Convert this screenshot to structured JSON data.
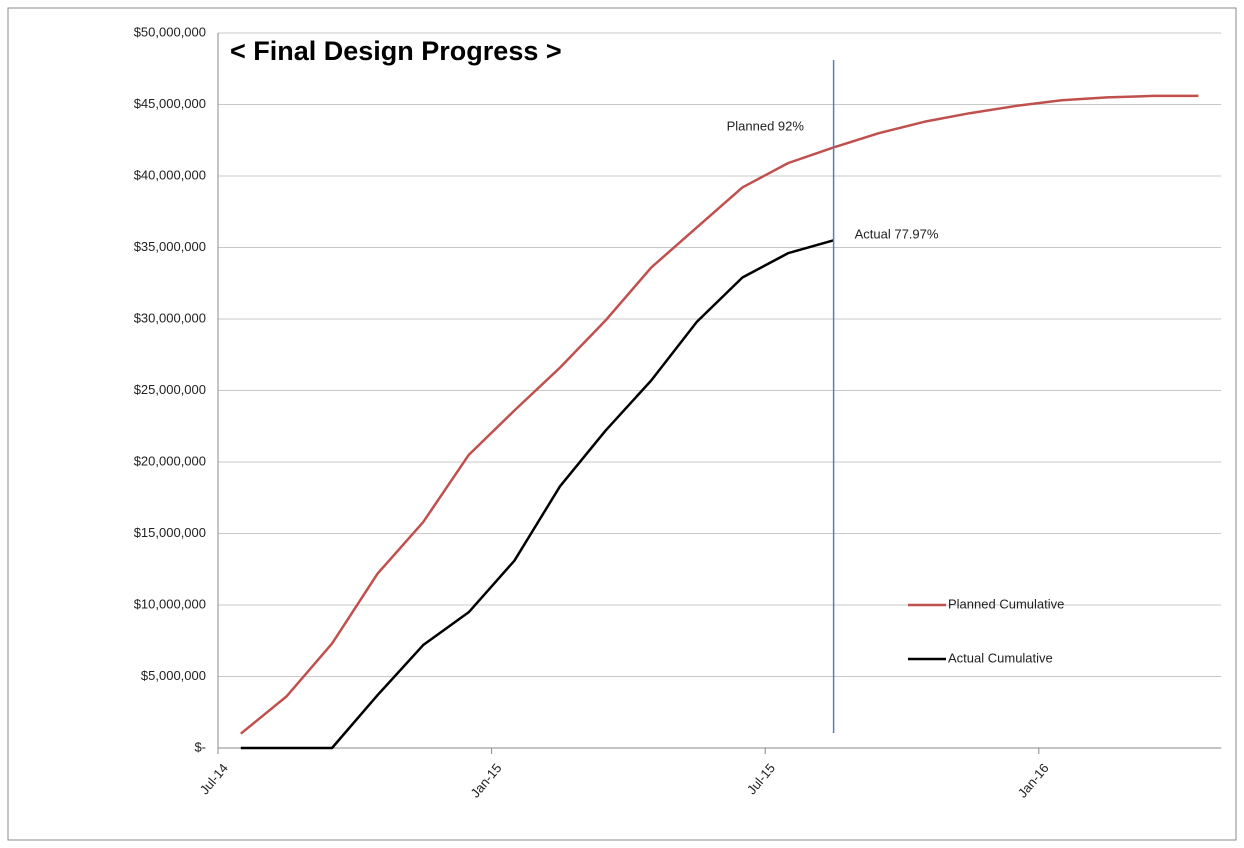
{
  "chart_data": {
    "type": "line",
    "title": "< Final Design Progress >",
    "categories": [
      "Jul-14",
      null,
      null,
      null,
      null,
      null,
      "Jan-15",
      null,
      null,
      null,
      null,
      null,
      "Jul-15",
      null,
      null,
      null,
      null,
      null,
      "Jan-16",
      null,
      null,
      null
    ],
    "series": [
      {
        "name": "Planned Cumulative",
        "color": "#c0504d",
        "values": [
          1000000,
          3600000,
          7300000,
          12200000,
          15800000,
          20500000,
          23600000,
          26600000,
          29900000,
          33600000,
          36400000,
          39200000,
          40900000,
          42000000,
          43000000,
          43800000,
          44400000,
          44900000,
          45300000,
          45500000,
          45600000,
          45600000
        ]
      },
      {
        "name": "Actual Cumulative",
        "color": "#000000",
        "values": [
          0,
          0,
          0,
          3700000,
          7200000,
          9500000,
          13100000,
          18300000,
          22200000,
          25700000,
          29800000,
          32900000,
          34600000,
          35500000,
          null,
          null,
          null,
          null,
          null,
          null,
          null,
          null
        ]
      }
    ],
    "annotations": [
      "Planned 92%",
      "Actual 77.97%"
    ],
    "ylim": [
      0,
      50000000
    ],
    "yticks": [
      {
        "value": 0,
        "label": "$-"
      },
      {
        "value": 5000000,
        "label": "$5,000,000"
      },
      {
        "value": 10000000,
        "label": "$10,000,000"
      },
      {
        "value": 15000000,
        "label": "$15,000,000"
      },
      {
        "value": 20000000,
        "label": "$20,000,000"
      },
      {
        "value": 25000000,
        "label": "$25,000,000"
      },
      {
        "value": 30000000,
        "label": "$30,000,000"
      },
      {
        "value": 35000000,
        "label": "$35,000,000"
      },
      {
        "value": 40000000,
        "label": "$40,000,000"
      },
      {
        "value": 45000000,
        "label": "$45,000,000"
      },
      {
        "value": 50000000,
        "label": "$50,000,000"
      }
    ],
    "grid": true
  }
}
